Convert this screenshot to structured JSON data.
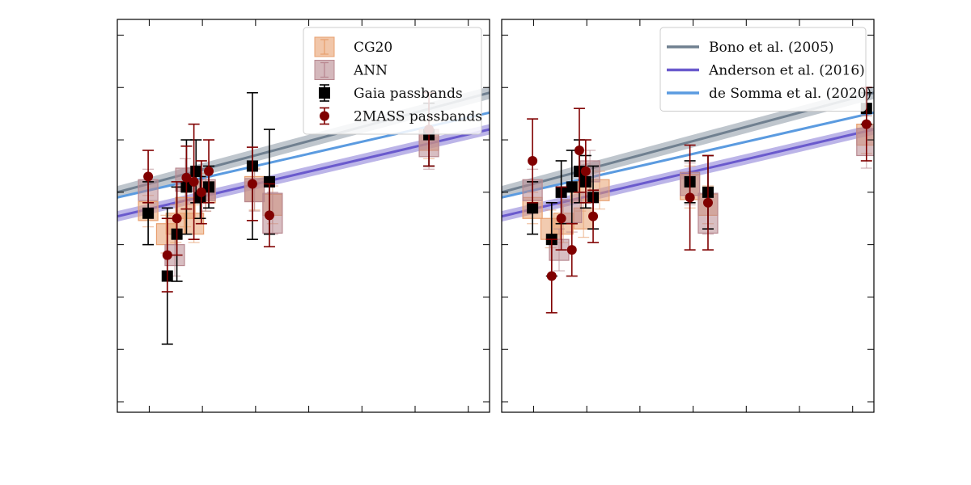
{
  "chart_data": [
    {
      "type": "scatter",
      "panel": "left",
      "xlim": [
        -0.3,
        3.2
      ],
      "ylim": [
        -3.15,
        -6.9
      ],
      "x_ticks": [
        0,
        0.5,
        1,
        1.5,
        2,
        2.5,
        3
      ],
      "y_ticks": [
        -3.3,
        -3.8,
        -4.3,
        -4.8,
        -5.3,
        -5.8,
        -6.3,
        -6.8
      ],
      "tick_labels_visible": false,
      "grid": false,
      "legend_position": "top-right",
      "legend": [
        {
          "label": "CG20",
          "marker": "box",
          "color": "#E8A070"
        },
        {
          "label": "ANN",
          "marker": "box",
          "color": "#B88890"
        },
        {
          "label": "Gaia passbands",
          "marker": "square",
          "color": "#000000"
        },
        {
          "label": "2MASS passbands",
          "marker": "circle",
          "color": "#800000"
        }
      ],
      "relations": [
        {
          "name": "Bono et al. (2005)",
          "color": "#708090",
          "x0": -0.3,
          "y0": -4.8,
          "x1": 3.2,
          "y1": -3.85,
          "band": 0.06
        },
        {
          "name": "Anderson et al. (2016)",
          "color": "#6A5ACD",
          "x0": -0.3,
          "y0": -5.03,
          "x1": 3.2,
          "y1": -4.2,
          "band": 0.05
        },
        {
          "name": "de Somma et al. (2020)",
          "color": "#5B9BE0",
          "x0": -0.3,
          "y0": -4.85,
          "x1": 3.2,
          "y1": -4.04,
          "band": 0.0
        }
      ],
      "boxes": [
        {
          "set": "CG20",
          "x": -0.01,
          "y": -4.98,
          "h": 0.18,
          "err": 0.15
        },
        {
          "set": "CG20",
          "x": 0.16,
          "y": -5.2,
          "h": 0.2,
          "err": 0.18
        },
        {
          "set": "CG20",
          "x": 0.25,
          "y": -5.1,
          "h": 0.2,
          "err": 0.18
        },
        {
          "set": "CG20",
          "x": 0.34,
          "y": -4.95,
          "h": 0.2,
          "err": 0.18
        },
        {
          "set": "CG20",
          "x": 0.42,
          "y": -5.1,
          "h": 0.2,
          "err": 0.18
        },
        {
          "set": "CG20",
          "x": 0.53,
          "y": -4.8,
          "h": 0.2,
          "err": 0.18
        },
        {
          "set": "CG20",
          "x": 0.99,
          "y": -4.77,
          "h": 0.24,
          "err": 0.2
        },
        {
          "set": "CG20",
          "x": 1.16,
          "y": -4.92,
          "h": 0.2,
          "err": 0.18
        },
        {
          "set": "CG20",
          "x": 2.63,
          "y": -4.3,
          "h": 0.2,
          "err": 0.18
        },
        {
          "set": "ANN",
          "x": -0.01,
          "y": -4.78,
          "h": 0.2,
          "err": 0.2
        },
        {
          "set": "ANN",
          "x": 0.24,
          "y": -5.4,
          "h": 0.2,
          "err": 0.2
        },
        {
          "set": "ANN",
          "x": 0.34,
          "y": -4.68,
          "h": 0.22,
          "err": 0.2
        },
        {
          "set": "ANN",
          "x": 0.53,
          "y": -4.78,
          "h": 0.2,
          "err": 0.2
        },
        {
          "set": "ANN",
          "x": 0.99,
          "y": -4.78,
          "h": 0.22,
          "err": 0.2
        },
        {
          "set": "ANN",
          "x": 1.16,
          "y": -5.0,
          "h": 0.38,
          "err": 0.2
        },
        {
          "set": "ANN",
          "x": 2.63,
          "y": -4.33,
          "h": 0.26,
          "err": 0.25
        }
      ],
      "gaia": [
        {
          "x": -0.01,
          "y": -5.0,
          "err": 0.3
        },
        {
          "x": 0.17,
          "y": -5.6,
          "err": 0.65
        },
        {
          "x": 0.26,
          "y": -5.2,
          "err": 0.45
        },
        {
          "x": 0.35,
          "y": -4.75,
          "err": 0.45
        },
        {
          "x": 0.44,
          "y": -4.6,
          "err": 0.3
        },
        {
          "x": 0.48,
          "y": -4.85,
          "err": 0.2
        },
        {
          "x": 0.56,
          "y": -4.75,
          "err": 0.2
        },
        {
          "x": 0.97,
          "y": -4.55,
          "err": 0.7
        },
        {
          "x": 1.13,
          "y": -4.7,
          "err": 0.5
        },
        {
          "x": 2.63,
          "y": -4.25,
          "err": 0.3
        }
      ],
      "twomass": [
        {
          "x": -0.01,
          "y": -4.65,
          "err": 0.25
        },
        {
          "x": 0.17,
          "y": -5.4,
          "err": 0.35
        },
        {
          "x": 0.26,
          "y": -5.05,
          "err": 0.35
        },
        {
          "x": 0.35,
          "y": -4.66,
          "err": 0.3
        },
        {
          "x": 0.42,
          "y": -4.7,
          "err": 0.55
        },
        {
          "x": 0.49,
          "y": -4.8,
          "err": 0.3
        },
        {
          "x": 0.56,
          "y": -4.6,
          "err": 0.3
        },
        {
          "x": 0.97,
          "y": -4.72,
          "err": 0.35
        },
        {
          "x": 1.13,
          "y": -5.02,
          "err": 0.3
        },
        {
          "x": 2.63,
          "y": -4.2,
          "err": 0.35
        }
      ]
    },
    {
      "type": "scatter",
      "panel": "right",
      "xlim": [
        -0.3,
        3.2
      ],
      "ylim": [
        -3.15,
        -6.9
      ],
      "x_ticks": [
        0,
        0.5,
        1,
        1.5,
        2,
        2.5,
        3
      ],
      "y_ticks": [
        -3.3,
        -3.8,
        -4.3,
        -4.8,
        -5.3,
        -5.8,
        -6.3,
        -6.8
      ],
      "tick_labels_visible": false,
      "grid": false,
      "legend_position": "top-right",
      "legend": [
        {
          "label": "Bono et al. (2005)",
          "marker": "line",
          "color": "#708090"
        },
        {
          "label": "Anderson et al. (2016)",
          "marker": "line",
          "color": "#6A5ACD"
        },
        {
          "label": "de Somma et al. (2020)",
          "marker": "line",
          "color": "#5B9BE0"
        }
      ],
      "relations": [
        {
          "name": "Bono et al. (2005)",
          "color": "#708090",
          "x0": -0.3,
          "y0": -4.8,
          "x1": 3.2,
          "y1": -3.85,
          "band": 0.06
        },
        {
          "name": "Anderson et al. (2016)",
          "color": "#6A5ACD",
          "x0": -0.3,
          "y0": -5.03,
          "x1": 3.2,
          "y1": -4.2,
          "band": 0.05
        },
        {
          "name": "de Somma et al. (2020)",
          "color": "#5B9BE0",
          "x0": -0.3,
          "y0": -4.85,
          "x1": 3.2,
          "y1": -4.04,
          "band": 0.0
        }
      ],
      "boxes": [
        {
          "set": "CG20",
          "x": -0.01,
          "y": -4.95,
          "h": 0.2,
          "err": 0.15
        },
        {
          "set": "CG20",
          "x": 0.16,
          "y": -5.15,
          "h": 0.2,
          "err": 0.18
        },
        {
          "set": "CG20",
          "x": 0.28,
          "y": -5.1,
          "h": 0.2,
          "err": 0.18
        },
        {
          "set": "CG20",
          "x": 0.47,
          "y": -5.05,
          "h": 0.2,
          "err": 0.18
        },
        {
          "set": "CG20",
          "x": 0.44,
          "y": -4.8,
          "h": 0.2,
          "err": 0.18
        },
        {
          "set": "CG20",
          "x": 0.62,
          "y": -4.78,
          "h": 0.2,
          "err": 0.18
        },
        {
          "set": "CG20",
          "x": 1.47,
          "y": -4.75,
          "h": 0.24,
          "err": 0.2
        },
        {
          "set": "CG20",
          "x": 1.64,
          "y": -4.92,
          "h": 0.2,
          "err": 0.18
        },
        {
          "set": "CG20",
          "x": 3.13,
          "y": -4.25,
          "h": 0.2,
          "err": 0.18
        },
        {
          "set": "ANN",
          "x": -0.01,
          "y": -4.78,
          "h": 0.2,
          "err": 0.2
        },
        {
          "set": "ANN",
          "x": 0.24,
          "y": -5.35,
          "h": 0.2,
          "err": 0.2
        },
        {
          "set": "ANN",
          "x": 0.36,
          "y": -4.98,
          "h": 0.22,
          "err": 0.2
        },
        {
          "set": "ANN",
          "x": 0.53,
          "y": -4.6,
          "h": 0.2,
          "err": 0.2
        },
        {
          "set": "ANN",
          "x": 1.47,
          "y": -4.72,
          "h": 0.22,
          "err": 0.2
        },
        {
          "set": "ANN",
          "x": 1.64,
          "y": -5.0,
          "h": 0.38,
          "err": 0.2
        },
        {
          "set": "ANN",
          "x": 3.13,
          "y": -4.32,
          "h": 0.26,
          "err": 0.25
        }
      ],
      "gaia": [
        {
          "x": -0.01,
          "y": -4.95,
          "err": 0.25
        },
        {
          "x": 0.17,
          "y": -5.25,
          "err": 0.35
        },
        {
          "x": 0.26,
          "y": -4.8,
          "err": 0.3
        },
        {
          "x": 0.36,
          "y": -4.75,
          "err": 0.35
        },
        {
          "x": 0.43,
          "y": -4.6,
          "err": 0.3
        },
        {
          "x": 0.49,
          "y": -4.7,
          "err": 0.25
        },
        {
          "x": 0.56,
          "y": -4.85,
          "err": 0.3
        },
        {
          "x": 1.47,
          "y": -4.7,
          "err": 0.2
        },
        {
          "x": 1.64,
          "y": -4.8,
          "err": 0.35
        },
        {
          "x": 3.13,
          "y": -4.0,
          "err": 0.15
        }
      ],
      "twomass": [
        {
          "x": -0.01,
          "y": -4.5,
          "err": 0.4
        },
        {
          "x": 0.17,
          "y": -5.6,
          "err": 0.35
        },
        {
          "x": 0.26,
          "y": -5.05,
          "err": 0.3
        },
        {
          "x": 0.36,
          "y": -5.35,
          "err": 0.25
        },
        {
          "x": 0.43,
          "y": -4.4,
          "err": 0.4
        },
        {
          "x": 0.49,
          "y": -4.6,
          "err": 0.3
        },
        {
          "x": 0.56,
          "y": -5.03,
          "err": 0.25
        },
        {
          "x": 1.47,
          "y": -4.85,
          "err": 0.5
        },
        {
          "x": 1.64,
          "y": -4.9,
          "err": 0.45
        },
        {
          "x": 3.13,
          "y": -4.15,
          "err": 0.35
        }
      ]
    }
  ]
}
